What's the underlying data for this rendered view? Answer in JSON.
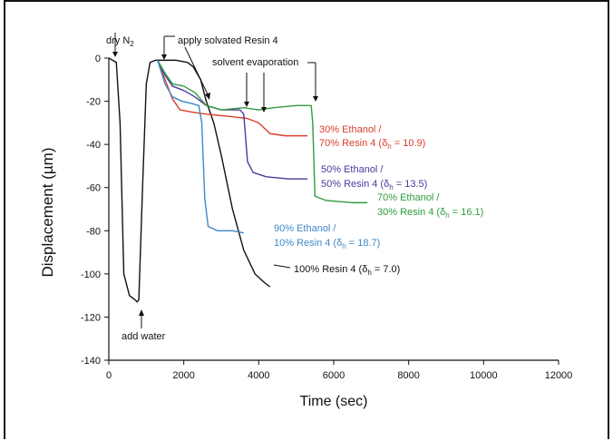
{
  "chart_data": {
    "type": "line",
    "title": "",
    "xlabel": "Time (sec)",
    "ylabel": "Displacement  (µm)",
    "xlim": [
      0,
      12000
    ],
    "ylim": [
      -140,
      0
    ],
    "xticks": [
      0,
      2000,
      4000,
      6000,
      8000,
      10000,
      12000
    ],
    "yticks": [
      0,
      -20,
      -40,
      -60,
      -80,
      -100,
      -120,
      -140
    ],
    "grid": false,
    "series": [
      {
        "label_lines": [
          "100% Resin 4 (δ",
          "h",
          " = 7.0)"
        ],
        "color": "#111111",
        "points": [
          [
            0,
            0
          ],
          [
            200,
            -2
          ],
          [
            300,
            -30
          ],
          [
            400,
            -100
          ],
          [
            550,
            -110
          ],
          [
            700,
            -112
          ],
          [
            760,
            -113
          ],
          [
            800,
            -112
          ],
          [
            900,
            -60
          ],
          [
            1000,
            -12
          ],
          [
            1100,
            -2
          ],
          [
            1250,
            -1
          ],
          [
            1500,
            -1
          ],
          [
            1800,
            -1
          ],
          [
            2100,
            -2
          ],
          [
            2250,
            -4
          ],
          [
            2450,
            -10
          ],
          [
            2600,
            -20
          ],
          [
            2800,
            -30
          ],
          [
            3000,
            -45
          ],
          [
            3300,
            -70
          ],
          [
            3600,
            -89
          ],
          [
            3900,
            -100
          ],
          [
            4150,
            -104
          ],
          [
            4300,
            -106
          ]
        ]
      },
      {
        "label_lines": [
          "30% Ethanol /",
          "70% Resin 4 (δ",
          "h",
          " = 10.9)"
        ],
        "color": "#d8402a",
        "points": [
          [
            1300,
            -1
          ],
          [
            1500,
            -10
          ],
          [
            1700,
            -19
          ],
          [
            1900,
            -24
          ],
          [
            2200,
            -25
          ],
          [
            2600,
            -26
          ],
          [
            3200,
            -27
          ],
          [
            3700,
            -28
          ],
          [
            4000,
            -30
          ],
          [
            4300,
            -35
          ],
          [
            4700,
            -36
          ],
          [
            5300,
            -36
          ]
        ]
      },
      {
        "label_lines": [
          "50% Ethanol /",
          "50% Resin 4 (δ",
          "h",
          " = 13.5)"
        ],
        "color": "#4a3a9c",
        "points": [
          [
            1300,
            -1
          ],
          [
            1500,
            -8
          ],
          [
            1700,
            -13
          ],
          [
            2000,
            -15
          ],
          [
            2300,
            -18
          ],
          [
            2600,
            -22
          ],
          [
            3000,
            -24
          ],
          [
            3500,
            -24
          ],
          [
            3600,
            -26
          ],
          [
            3700,
            -48
          ],
          [
            3850,
            -53
          ],
          [
            4200,
            -55
          ],
          [
            4800,
            -56
          ],
          [
            5300,
            -56
          ]
        ]
      },
      {
        "label_lines": [
          "70% Ethanol /",
          "30% Resin 4 (δ",
          "h",
          " = 16.1)"
        ],
        "color": "#2f9a3f",
        "points": [
          [
            1300,
            -1
          ],
          [
            1500,
            -7
          ],
          [
            1700,
            -12
          ],
          [
            2000,
            -13
          ],
          [
            2300,
            -16
          ],
          [
            2600,
            -22
          ],
          [
            3000,
            -24
          ],
          [
            3600,
            -23
          ],
          [
            4000,
            -24
          ],
          [
            4400,
            -23
          ],
          [
            5000,
            -22
          ],
          [
            5400,
            -22
          ],
          [
            5440,
            -30
          ],
          [
            5500,
            -64
          ],
          [
            5800,
            -66
          ],
          [
            6500,
            -67
          ],
          [
            6900,
            -67
          ]
        ]
      },
      {
        "label_lines": [
          "90% Ethanol /",
          "10% Resin 4 (δ",
          "h",
          " = 18.7)"
        ],
        "color": "#3f88c6",
        "points": [
          [
            1300,
            -1
          ],
          [
            1500,
            -12
          ],
          [
            1700,
            -18
          ],
          [
            1950,
            -20
          ],
          [
            2200,
            -21
          ],
          [
            2400,
            -22
          ],
          [
            2480,
            -30
          ],
          [
            2560,
            -65
          ],
          [
            2650,
            -78
          ],
          [
            2900,
            -80
          ],
          [
            3300,
            -80
          ],
          [
            3600,
            -81
          ]
        ]
      }
    ],
    "annotations": [
      {
        "name": "dry-n2",
        "parts": [
          "dry N",
          "2"
        ]
      },
      {
        "name": "apply-solvated",
        "text": "apply solvated Resin 4"
      },
      {
        "name": "solvent-evaporation",
        "text": "solvent evaporation"
      },
      {
        "name": "add-water",
        "text": "add water"
      }
    ]
  },
  "colors": {
    "axis": "#111111",
    "background": "#ffffff"
  }
}
